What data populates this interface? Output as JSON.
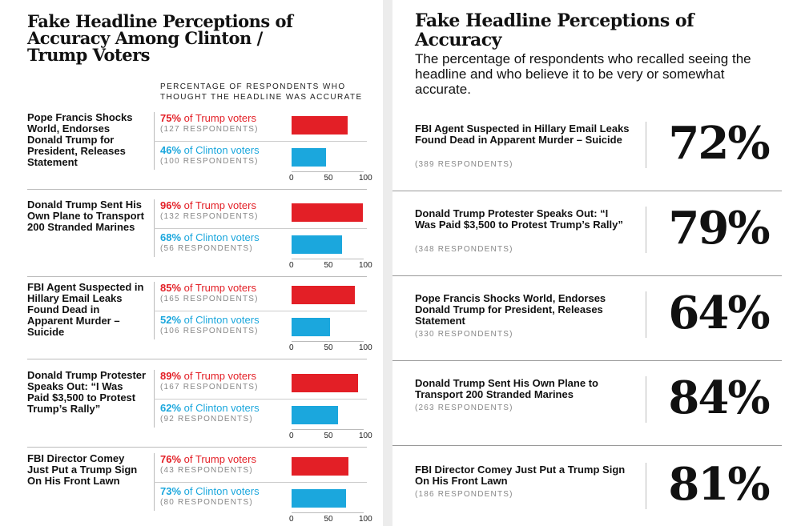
{
  "left": {
    "title": "Fake Headline Perceptions of Accuracy Among Clinton / Trump Voters",
    "column_header": "PERCENTAGE OF RESPONDENTS WHO THOUGHT THE HEADLINE WAS ACCURATE"
  },
  "right": {
    "title": "Fake Headline Perceptions of Accuracy",
    "subtitle": "The percentage of respondents who recalled seeing the headline and who believe it to be very or somewhat accurate."
  },
  "colors": {
    "trump": "#e31f26",
    "clinton": "#1ba7dd"
  },
  "chart_data": [
    {
      "type": "bar",
      "title": "Fake Headline Perceptions of Accuracy Among Clinton / Trump Voters",
      "xlim": [
        0,
        100
      ],
      "ticks": [
        "0",
        "50",
        "100"
      ],
      "groups": [
        {
          "headline": "Pope Francis Shocks World, Endorses Donald Trump for President, Releases Statement",
          "trump": {
            "value": 75,
            "pct": "75%",
            "label": "of Trump voters",
            "respondents": "(127 RESPONDENTS)"
          },
          "clinton": {
            "value": 46,
            "pct": "46%",
            "label": "of Clinton voters",
            "respondents": "(100 RESPONDENTS)"
          }
        },
        {
          "headline": "Donald Trump Sent His Own Plane to Transport 200 Stranded Marines",
          "trump": {
            "value": 96,
            "pct": "96%",
            "label": "of Trump voters",
            "respondents": "(132 RESPONDENTS)"
          },
          "clinton": {
            "value": 68,
            "pct": "68%",
            "label": "of Clinton voters",
            "respondents": "(56 RESPONDENTS)"
          }
        },
        {
          "headline": "FBI Agent Suspected in Hillary Email Leaks Found Dead in Apparent Murder – Suicide",
          "trump": {
            "value": 85,
            "pct": "85%",
            "label": "of Trump voters",
            "respondents": "(165 RESPONDENTS)"
          },
          "clinton": {
            "value": 52,
            "pct": "52%",
            "label": "of Clinton voters",
            "respondents": "(106 RESPONDENTS)"
          }
        },
        {
          "headline": "Donald Trump Protester Speaks Out: “I Was Paid $3,500 to Protest Trump’s Rally”",
          "trump": {
            "value": 89,
            "pct": "89%",
            "label": "of Trump voters",
            "respondents": "(167 RESPONDENTS)"
          },
          "clinton": {
            "value": 62,
            "pct": "62%",
            "label": "of Clinton voters",
            "respondents": "(92 RESPONDENTS)"
          }
        },
        {
          "headline": "FBI Director Comey Just Put a Trump Sign On His Front Lawn",
          "trump": {
            "value": 76,
            "pct": "76%",
            "label": "of Trump voters",
            "respondents": "(43 RESPONDENTS)"
          },
          "clinton": {
            "value": 73,
            "pct": "73%",
            "label": "of Clinton voters",
            "respondents": "(80 RESPONDENTS)"
          }
        }
      ]
    },
    {
      "type": "table",
      "title": "Fake Headline Perceptions of Accuracy",
      "rows": [
        {
          "headline": "FBI Agent Suspected in Hillary Email Leaks Found Dead in Apparent Murder – Suicide",
          "respondents": "(389 RESPONDENTS)",
          "value": 72,
          "pct": "72%"
        },
        {
          "headline": "Donald Trump Protester Speaks Out: “I Was Paid $3,500 to Protest Trump’s Rally”",
          "respondents": "(348 RESPONDENTS)",
          "value": 79,
          "pct": "79%"
        },
        {
          "headline": "Pope Francis Shocks World, Endorses Donald Trump for President, Releases Statement",
          "respondents": "(330 RESPONDENTS)",
          "value": 64,
          "pct": "64%"
        },
        {
          "headline": "Donald Trump Sent His Own Plane to Transport 200 Stranded Marines",
          "respondents": "(263 RESPONDENTS)",
          "value": 84,
          "pct": "84%"
        },
        {
          "headline": "FBI Director Comey Just Put a Trump Sign On His Front Lawn",
          "respondents": "(186 RESPONDENTS)",
          "value": 81,
          "pct": "81%"
        }
      ]
    }
  ]
}
